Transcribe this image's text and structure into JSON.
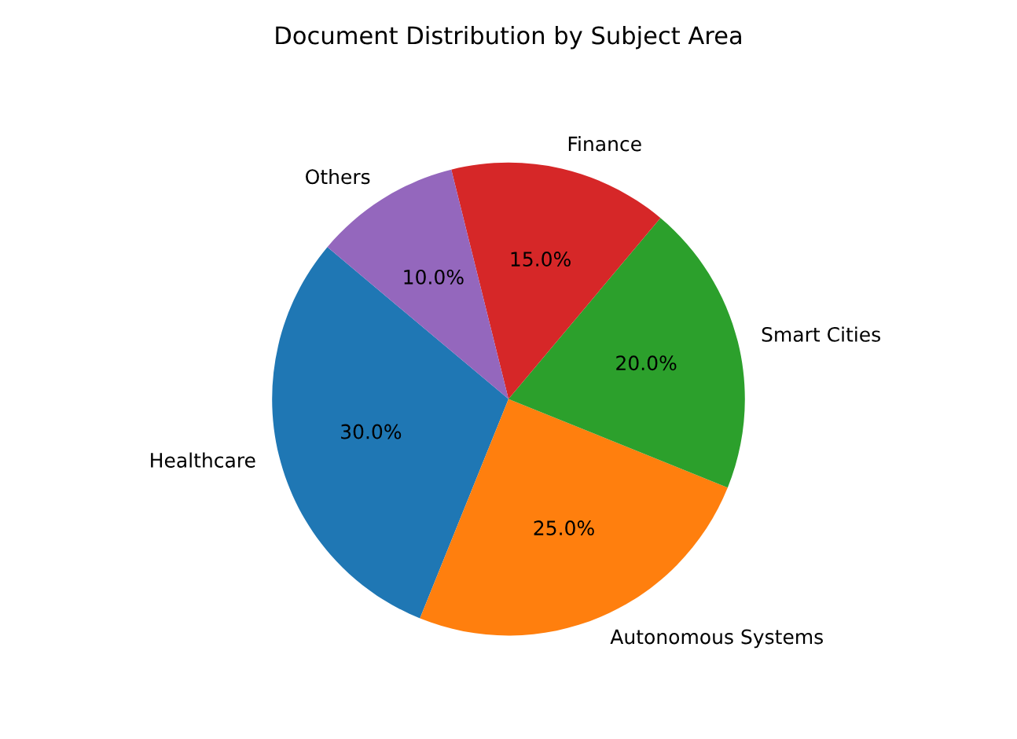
{
  "chart_data": {
    "type": "pie",
    "title": "Document Distribution by Subject Area",
    "categories": [
      "Healthcare",
      "Autonomous Systems",
      "Smart Cities",
      "Finance",
      "Others"
    ],
    "values": [
      30,
      25,
      20,
      15,
      10
    ],
    "value_labels": [
      "30.0%",
      "25.0%",
      "20.0%",
      "15.0%",
      "10.0%"
    ],
    "colors": [
      "#1f77b4",
      "#ff7f0e",
      "#2ca02c",
      "#d62728",
      "#9467bd"
    ]
  }
}
